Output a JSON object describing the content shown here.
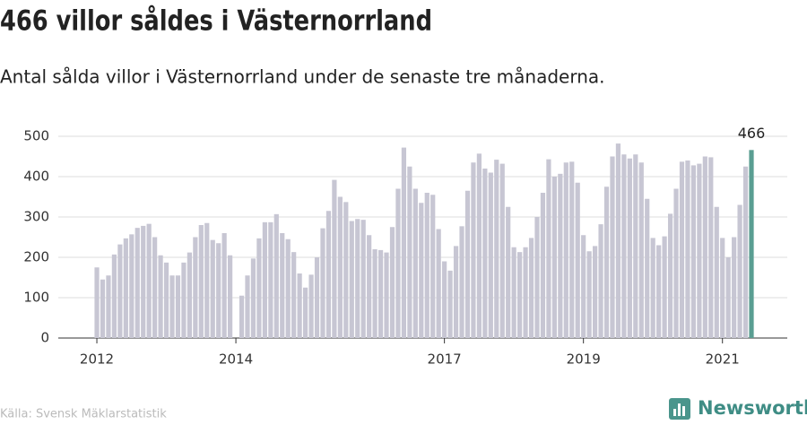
{
  "chart_data": {
    "type": "bar",
    "title": "466 villor såldes i Västernorrland",
    "subtitle": "Antal sålda villor i Västernorrland under de senaste tre månaderna.",
    "source": "Källa: Svensk Mäklarstatistik",
    "logo": "Newsworthy",
    "categories": [
      "2012",
      null,
      null,
      null,
      null,
      null,
      null,
      null,
      null,
      null,
      null,
      null,
      null,
      null,
      null,
      null,
      null,
      null,
      null,
      null,
      null,
      null,
      null,
      null,
      "2014",
      null,
      null,
      null,
      null,
      null,
      null,
      null,
      null,
      null,
      null,
      null,
      null,
      null,
      null,
      null,
      null,
      null,
      null,
      null,
      null,
      null,
      null,
      null,
      null,
      null,
      null,
      null,
      null,
      null,
      null,
      null,
      null,
      null,
      null,
      null,
      "2017",
      null,
      null,
      null,
      null,
      null,
      null,
      null,
      null,
      null,
      null,
      null,
      null,
      null,
      null,
      null,
      null,
      null,
      null,
      null,
      null,
      null,
      null,
      null,
      "2019",
      null,
      null,
      null,
      null,
      null,
      null,
      null,
      null,
      null,
      null,
      null,
      null,
      null,
      null,
      null,
      null,
      null,
      null,
      null,
      null,
      null,
      null,
      null,
      "2021",
      null,
      null,
      null,
      null,
      null
    ],
    "values": [
      175,
      145,
      155,
      207,
      232,
      247,
      257,
      273,
      278,
      283,
      250,
      205,
      187,
      155,
      155,
      187,
      212,
      250,
      280,
      285,
      243,
      235,
      260,
      205,
      null,
      105,
      155,
      197,
      247,
      287,
      287,
      307,
      260,
      245,
      213,
      160,
      125,
      157,
      200,
      272,
      315,
      392,
      350,
      337,
      290,
      295,
      293,
      255,
      220,
      218,
      212,
      275,
      370,
      472,
      425,
      370,
      335,
      360,
      355,
      270,
      190,
      167,
      228,
      277,
      365,
      435,
      457,
      420,
      410,
      442,
      432,
      325,
      225,
      213,
      225,
      248,
      300,
      360,
      443,
      400,
      407,
      435,
      437,
      385,
      255,
      215,
      228,
      282,
      375,
      450,
      482,
      455,
      445,
      455,
      435,
      345,
      248,
      230,
      252,
      308,
      370,
      437,
      440,
      428,
      432,
      450,
      448,
      325,
      248,
      200,
      250,
      330,
      425,
      466
    ],
    "color": "#c7c6d3",
    "highlight_color": "#5a9e92",
    "ylim": [
      0,
      500
    ],
    "yticks": [
      0,
      100,
      200,
      300,
      400,
      500
    ],
    "grid": true
  }
}
